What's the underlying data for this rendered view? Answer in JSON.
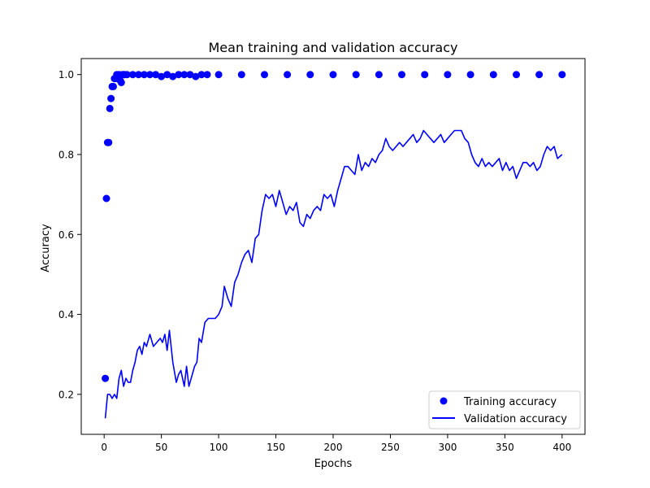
{
  "chart_data": {
    "type": "line",
    "title": "Mean training and validation accuracy",
    "xlabel": "Epochs",
    "ylabel": "Accuracy",
    "xlim": [
      -20,
      420
    ],
    "ylim": [
      0.1,
      1.04
    ],
    "xticks": [
      0,
      50,
      100,
      150,
      200,
      250,
      300,
      350,
      400
    ],
    "yticks": [
      0.2,
      0.4,
      0.6,
      0.8,
      1.0
    ],
    "xtick_labels": [
      "0",
      "50",
      "100",
      "150",
      "200",
      "250",
      "300",
      "350",
      "400"
    ],
    "ytick_labels": [
      "0.2",
      "0.4",
      "0.6",
      "0.8",
      "1.0"
    ],
    "legend_position": "lower-right",
    "grid": false,
    "series": [
      {
        "name": "Training accuracy",
        "style": "markers",
        "color": "#0000ff",
        "x": [
          1,
          2,
          3,
          4,
          5,
          6,
          7,
          8,
          9,
          10,
          11,
          12,
          13,
          14,
          15,
          16,
          17,
          18,
          20,
          25,
          30,
          35,
          40,
          45,
          50,
          55,
          60,
          65,
          70,
          75,
          80,
          85,
          90,
          100,
          120,
          140,
          160,
          180,
          200,
          220,
          240,
          260,
          280,
          300,
          320,
          340,
          360,
          380,
          400
        ],
        "y": [
          0.24,
          0.69,
          0.83,
          0.83,
          0.915,
          0.94,
          0.97,
          0.97,
          0.99,
          0.99,
          1.0,
          0.995,
          1.0,
          0.985,
          0.98,
          1.0,
          1.0,
          1.0,
          1.0,
          1.0,
          1.0,
          1.0,
          1.0,
          1.0,
          0.995,
          1.0,
          0.995,
          1.0,
          1.0,
          1.0,
          0.995,
          1.0,
          1.0,
          1.0,
          1.0,
          1.0,
          1.0,
          1.0,
          1.0,
          1.0,
          1.0,
          1.0,
          1.0,
          1.0,
          1.0,
          1.0,
          1.0,
          1.0,
          1.0
        ]
      },
      {
        "name": "Validation accuracy",
        "style": "line",
        "color": "#0000ff",
        "x": [
          1,
          3,
          5,
          7,
          9,
          11,
          13,
          15,
          17,
          19,
          21,
          23,
          25,
          27,
          29,
          31,
          33,
          35,
          37,
          40,
          43,
          46,
          49,
          51,
          53,
          55,
          57,
          60,
          63,
          65,
          67,
          70,
          72,
          74,
          76,
          79,
          81,
          83,
          85,
          88,
          91,
          94,
          97,
          100,
          103,
          105,
          108,
          111,
          114,
          117,
          120,
          123,
          126,
          129,
          132,
          135,
          138,
          141,
          144,
          147,
          150,
          153,
          156,
          159,
          162,
          165,
          168,
          171,
          174,
          177,
          180,
          183,
          186,
          189,
          192,
          195,
          198,
          201,
          204,
          207,
          210,
          213,
          216,
          219,
          222,
          225,
          228,
          231,
          234,
          237,
          240,
          243,
          246,
          249,
          252,
          255,
          258,
          261,
          264,
          267,
          270,
          273,
          276,
          279,
          282,
          285,
          288,
          291,
          294,
          297,
          300,
          303,
          306,
          309,
          312,
          315,
          318,
          321,
          324,
          327,
          330,
          333,
          336,
          339,
          342,
          345,
          348,
          351,
          354,
          357,
          360,
          363,
          366,
          369,
          372,
          375,
          378,
          381,
          384,
          387,
          390,
          393,
          396,
          400
        ],
        "y": [
          0.14,
          0.2,
          0.2,
          0.19,
          0.2,
          0.19,
          0.24,
          0.26,
          0.22,
          0.24,
          0.23,
          0.23,
          0.26,
          0.28,
          0.31,
          0.32,
          0.3,
          0.33,
          0.32,
          0.35,
          0.32,
          0.33,
          0.34,
          0.33,
          0.35,
          0.31,
          0.36,
          0.28,
          0.23,
          0.25,
          0.26,
          0.22,
          0.27,
          0.22,
          0.24,
          0.27,
          0.28,
          0.34,
          0.33,
          0.38,
          0.39,
          0.39,
          0.39,
          0.4,
          0.42,
          0.47,
          0.44,
          0.42,
          0.48,
          0.5,
          0.53,
          0.55,
          0.56,
          0.53,
          0.59,
          0.6,
          0.66,
          0.7,
          0.69,
          0.7,
          0.67,
          0.71,
          0.68,
          0.65,
          0.67,
          0.66,
          0.68,
          0.63,
          0.62,
          0.65,
          0.64,
          0.66,
          0.67,
          0.66,
          0.7,
          0.69,
          0.7,
          0.67,
          0.71,
          0.74,
          0.77,
          0.77,
          0.76,
          0.75,
          0.8,
          0.76,
          0.78,
          0.77,
          0.79,
          0.78,
          0.8,
          0.81,
          0.84,
          0.82,
          0.81,
          0.82,
          0.83,
          0.82,
          0.83,
          0.84,
          0.85,
          0.83,
          0.84,
          0.86,
          0.85,
          0.84,
          0.83,
          0.84,
          0.85,
          0.83,
          0.84,
          0.85,
          0.86,
          0.86,
          0.86,
          0.84,
          0.83,
          0.8,
          0.78,
          0.77,
          0.79,
          0.77,
          0.78,
          0.77,
          0.78,
          0.79,
          0.76,
          0.78,
          0.76,
          0.77,
          0.74,
          0.76,
          0.78,
          0.78,
          0.77,
          0.78,
          0.76,
          0.77,
          0.8,
          0.82,
          0.81,
          0.82,
          0.79,
          0.8
        ]
      }
    ]
  }
}
